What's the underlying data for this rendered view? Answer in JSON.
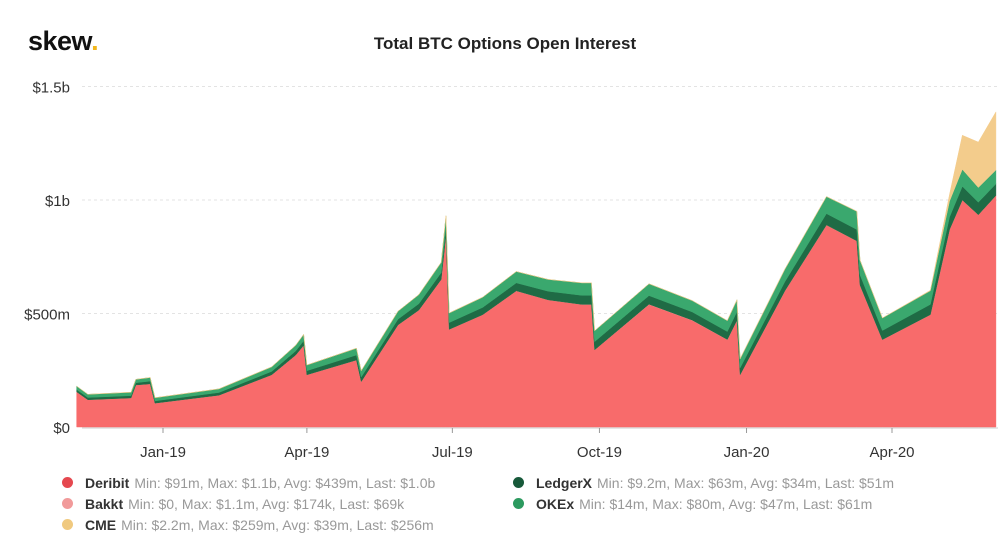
{
  "logo": {
    "text": "skew",
    "dot": "."
  },
  "chart_data": {
    "type": "area",
    "stacked": true,
    "title": "Total BTC Options Open Interest",
    "xlabel": "",
    "ylabel": "",
    "ylim": [
      0,
      1500
    ],
    "y_unit": "$m",
    "y_ticks": [
      {
        "value": 0,
        "label": "$0"
      },
      {
        "value": 500,
        "label": "$500m"
      },
      {
        "value": 1000,
        "label": "$1b"
      },
      {
        "value": 1500,
        "label": "$1.5b"
      }
    ],
    "x_ticks": [
      {
        "date": "2019-01-01",
        "label": "Jan-19"
      },
      {
        "date": "2019-04-01",
        "label": "Apr-19"
      },
      {
        "date": "2019-07-01",
        "label": "Jul-19"
      },
      {
        "date": "2019-10-01",
        "label": "Oct-19"
      },
      {
        "date": "2020-01-01",
        "label": "Jan-20"
      },
      {
        "date": "2020-04-01",
        "label": "Apr-20"
      }
    ],
    "grid": "horizontal dashed",
    "legend_placement": "bottom",
    "dates": [
      "2018-11-08",
      "2018-11-15",
      "2018-12-12",
      "2018-12-15",
      "2018-12-24",
      "2018-12-27",
      "2019-02-05",
      "2019-03-10",
      "2019-03-25",
      "2019-03-30",
      "2019-04-01",
      "2019-05-02",
      "2019-05-05",
      "2019-05-28",
      "2019-06-10",
      "2019-06-24",
      "2019-06-27",
      "2019-06-29",
      "2019-07-20",
      "2019-08-10",
      "2019-08-30",
      "2019-09-20",
      "2019-09-26",
      "2019-09-28",
      "2019-11-01",
      "2019-11-28",
      "2019-12-20",
      "2019-12-26",
      "2019-12-28",
      "2020-01-25",
      "2020-02-20",
      "2020-03-10",
      "2020-03-12",
      "2020-03-26",
      "2020-04-25",
      "2020-05-07",
      "2020-05-15",
      "2020-05-25",
      "2020-06-05"
    ],
    "series": [
      {
        "name": "Deribit",
        "color": "#f86b6b",
        "legend_color": "#e5484f",
        "stats": "Min: $91m, Max: $1.1b, Avg: $439m, Last: $1.0b",
        "values": [
          155,
          120,
          128,
          185,
          190,
          105,
          140,
          230,
          317,
          360,
          230,
          295,
          200,
          450,
          515,
          650,
          845,
          430,
          495,
          600,
          560,
          540,
          540,
          340,
          540,
          470,
          385,
          470,
          230,
          600,
          890,
          820,
          625,
          385,
          495,
          870,
          1000,
          935,
          1020
        ]
      },
      {
        "name": "Bakkt",
        "color": "#f4a3a3",
        "legend_color": "#f19a9a",
        "stats": "Min: $0, Max: $1.1m, Avg: $174k, Last: $69k",
        "values": [
          0,
          0,
          0,
          0,
          0,
          0,
          0,
          0,
          0,
          0,
          0,
          0,
          0,
          0,
          0,
          0,
          0,
          0,
          0,
          0,
          0,
          0,
          0,
          0,
          1,
          1,
          0.5,
          0.3,
          0.3,
          0.2,
          0.2,
          0.1,
          0.1,
          0.1,
          0.1,
          0.1,
          0.1,
          0.1,
          0.07
        ]
      },
      {
        "name": "LedgerX",
        "color": "#1f6b45",
        "legend_color": "#17593a",
        "stats": "Min: $9.2m, Max: $63m, Avg: $34m, Last: $51m",
        "values": [
          10,
          10,
          10,
          10,
          12,
          10,
          12,
          15,
          18,
          20,
          18,
          22,
          20,
          25,
          28,
          30,
          35,
          30,
          32,
          35,
          38,
          40,
          40,
          36,
          38,
          36,
          35,
          38,
          30,
          40,
          50,
          50,
          45,
          40,
          45,
          55,
          60,
          55,
          51
        ]
      },
      {
        "name": "OKEx",
        "color": "#3aa86e",
        "legend_color": "#2c9a5f",
        "stats": "Min: $14m, Max: $80m, Avg: $47m, Last: $61m",
        "values": [
          15,
          14,
          15,
          15,
          16,
          14,
          16,
          20,
          25,
          28,
          25,
          30,
          28,
          35,
          40,
          45,
          50,
          42,
          45,
          50,
          52,
          55,
          55,
          48,
          52,
          50,
          48,
          52,
          40,
          55,
          75,
          80,
          65,
          55,
          60,
          70,
          75,
          65,
          61
        ]
      },
      {
        "name": "CME",
        "color": "#f3cc8c",
        "legend_color": "#f0c97f",
        "stats": "Min: $2.2m, Max: $259m, Avg: $39m, Last: $256m",
        "values": [
          0,
          0,
          0,
          0,
          0,
          0,
          0,
          0,
          0,
          0,
          0,
          0,
          0,
          0,
          0,
          0,
          0,
          0,
          0,
          0,
          0,
          0,
          0,
          0,
          0,
          0,
          0,
          0,
          0,
          0,
          0,
          0,
          0,
          0,
          2.2,
          30,
          150,
          200,
          256
        ]
      }
    ]
  }
}
